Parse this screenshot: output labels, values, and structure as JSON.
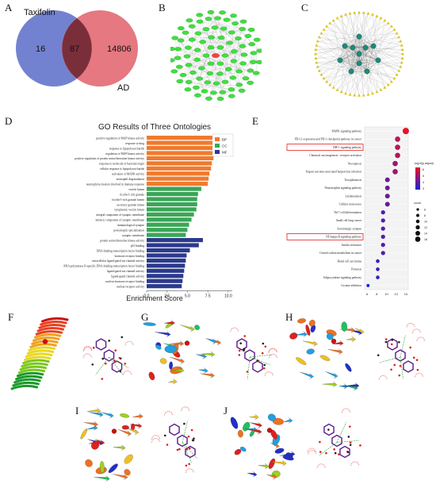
{
  "panel_labels": {
    "A": "A",
    "B": "B",
    "C": "C",
    "D": "D",
    "E": "E",
    "F": "F",
    "G": "G",
    "H": "H",
    "I": "I",
    "J": "J"
  },
  "venn": {
    "left_label": "Taxifolin",
    "right_label": "AD",
    "left_only": "16",
    "overlap": "87",
    "right_only": "14806",
    "colors": {
      "left": "#5a6cc8",
      "right": "#e0606a",
      "overlap": "#7a2e3a"
    }
  },
  "chart_data": [
    {
      "type": "bar",
      "orientation": "horizontal",
      "title": "GO Results of Three Ontologies",
      "xlabel": "Enrichment Score",
      "ylabel": "",
      "xlim": [
        0,
        10.5
      ],
      "xticks": [
        "0.0",
        "2.5",
        "5.0",
        "7.5",
        "10.0"
      ],
      "legend": {
        "position": "top-right",
        "entries": [
          {
            "name": "BP",
            "color": "#f07a2e"
          },
          {
            "name": "CC",
            "color": "#3aa657"
          },
          {
            "name": "MF",
            "color": "#2c3a8c"
          }
        ]
      },
      "categories": [
        "positive regulation of MAP kinase activity",
        "response to drug",
        "response to lipopolysaccharide",
        "regulation of MAP kinase activity",
        "positive regulation of protein serine/threonine kinase activity",
        "response to molecule of bacterial origin",
        "cellular response to lipopolysaccharide",
        "activation of MAPK activity",
        "neutrophil degranulation",
        "neutrophil activation involved in immune response",
        "vesicle lumen",
        "ficolin-1-rich granule",
        "ficolin-1-rich granule lumen",
        "secretory granule lumen",
        "cytoplasmic vesicle lumen",
        "integral component of synaptic membrane",
        "intrinsic component of synaptic membrane",
        "immunological synapse",
        "postsynaptic specialization",
        "synaptic membrane",
        "protein serine/threonine kinase activity",
        "p53 binding",
        "DNA-binding transcription factor binding",
        "hormone receptor binding",
        "extracellular ligand-gated ion channel activity",
        "RNA polymerase II-specific DNA-binding transcription factor binding",
        "ligand-gated ion channel activity",
        "ligand-gated channel activity",
        "nuclear hormone receptor binding",
        "nuclear receptor activity"
      ],
      "groups": [
        "BP",
        "BP",
        "BP",
        "BP",
        "BP",
        "BP",
        "BP",
        "BP",
        "BP",
        "BP",
        "CC",
        "CC",
        "CC",
        "CC",
        "CC",
        "CC",
        "CC",
        "CC",
        "CC",
        "CC",
        "MF",
        "MF",
        "MF",
        "MF",
        "MF",
        "MF",
        "MF",
        "MF",
        "MF",
        "MF"
      ],
      "values": [
        8.6,
        8.5,
        8.4,
        8.3,
        8.2,
        8.0,
        7.9,
        7.7,
        7.6,
        7.5,
        6.7,
        6.3,
        6.2,
        6.2,
        6.1,
        5.8,
        5.5,
        5.2,
        5.0,
        4.8,
        6.9,
        6.4,
        5.3,
        4.9,
        4.8,
        4.7,
        4.6,
        4.5,
        4.4,
        4.3
      ]
    },
    {
      "type": "scatter",
      "subtype": "dot-plot",
      "categories": [
        "MAPK signaling pathway",
        "PD-L1 expression and PD-1 checkpoint pathway in cancer",
        "HIF-1 signaling pathway",
        "Chemical carcinogenesis - receptor activation",
        "Necroptosis",
        "Kaposi sarcoma-associated herpesvirus infection",
        "Toxoplasmosis",
        "Neurotrophin signaling pathway",
        "Leishmaniasis",
        "Cellular senescence",
        "Th17 cell differentiation",
        "Small cell lung cancer",
        "Serotonergic synapse",
        "NF-kappa B signaling pathway",
        "Insulin resistance",
        "Central carbon metabolism in cancer",
        "Renal cell carcinoma",
        "Pertussis",
        "Adipocytokine signaling pathway",
        "Cocaine addiction"
      ],
      "highlighted": [
        "HIF-1 signaling pathway",
        "NF-kappa B signaling pathway"
      ],
      "x": [
        14,
        12.3,
        12.3,
        12.3,
        11.8,
        11.8,
        10.2,
        10.2,
        10.2,
        10.2,
        9.3,
        9.3,
        9.3,
        9.3,
        9.3,
        9.3,
        8.2,
        8.2,
        8.2,
        6.2
      ],
      "size": [
        16,
        12,
        12,
        12,
        12,
        12,
        10,
        10,
        10,
        10,
        8,
        8,
        8,
        8,
        8,
        8,
        6,
        6,
        6,
        4
      ],
      "neglog10_padj": [
        6,
        5,
        5,
        5,
        4.5,
        4.5,
        3.5,
        3.5,
        3.5,
        3.5,
        3,
        3,
        3,
        3,
        3,
        3,
        2.5,
        2.5,
        2.5,
        2
      ],
      "xticks": [
        "6",
        "8",
        "10",
        "12",
        "14"
      ],
      "xlim": [
        5.5,
        14.5
      ],
      "color_legend_title": "-log10(p.adjust)",
      "color_ticks": [
        "3",
        "4",
        "5",
        "6"
      ],
      "size_legend_title": "count",
      "size_ticks": [
        "6",
        "8",
        "10",
        "12",
        "14",
        "16"
      ],
      "colors": {
        "high": "#e8112d",
        "low": "#1a23d6"
      }
    }
  ]
}
